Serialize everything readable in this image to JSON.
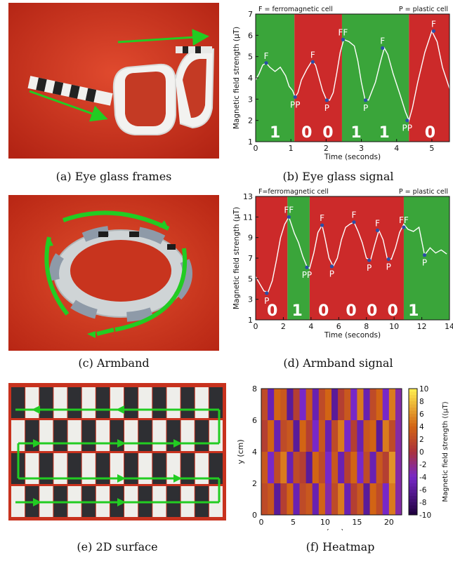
{
  "captions": {
    "a": "(a) Eye glass frames",
    "b": "(b) Eye glass signal",
    "c": "(c) Armband",
    "d": "(d) Armband signal",
    "e": "(e) 2D surface",
    "f": "(f) Heatmap"
  },
  "colors": {
    "ferro_region": "#cc2a2a",
    "plastic_region": "#3aa53a",
    "signal": "#ffffff",
    "marker": "#2a4fa8",
    "arrow": "#22cc22",
    "photo_bg": "#c8321e"
  },
  "chart_data": [
    {
      "id": "eyeglass-signal",
      "type": "line",
      "legend_left": "F = ferromagnetic cell",
      "legend_right": "P = plastic cell",
      "xlabel": "Time (seconds)",
      "ylabel": "Magnetic field strength (μT)",
      "xlim": [
        0,
        5.5
      ],
      "ylim": [
        1,
        7
      ],
      "xticks": [
        0,
        1,
        2,
        3,
        4,
        5
      ],
      "yticks": [
        1,
        2,
        3,
        4,
        5,
        6,
        7
      ],
      "regions": [
        {
          "from": 0,
          "to": 1.1,
          "cell": "plastic",
          "bit": "1",
          "bit_x": 0.55
        },
        {
          "from": 1.1,
          "to": 2.45,
          "cell": "ferro",
          "bits": [
            {
              "label": "0",
              "x": 1.45
            },
            {
              "label": "0",
              "x": 2.05
            }
          ]
        },
        {
          "from": 2.45,
          "to": 4.35,
          "cell": "plastic",
          "bits": [
            {
              "label": "1",
              "x": 2.85
            },
            {
              "label": "1",
              "x": 3.65
            }
          ]
        },
        {
          "from": 4.35,
          "to": 5.5,
          "cell": "ferro",
          "bit": "0",
          "bit_x": 4.95
        }
      ],
      "series": [
        {
          "x": [
            0,
            0.1,
            0.2,
            0.3,
            0.4,
            0.55,
            0.7,
            0.85,
            0.95,
            1.05,
            1.12,
            1.2,
            1.3,
            1.45,
            1.6,
            1.7,
            1.8,
            1.9,
            2.0,
            2.1,
            2.2,
            2.3,
            2.4,
            2.5,
            2.65,
            2.8,
            2.9,
            3.0,
            3.1,
            3.2,
            3.4,
            3.55,
            3.65,
            3.75,
            3.9,
            4.1,
            4.25,
            4.35,
            4.45,
            4.6,
            4.8,
            5.0,
            5.15,
            5.3,
            5.5
          ],
          "y": [
            3.9,
            4.2,
            4.6,
            4.7,
            4.5,
            4.3,
            4.5,
            4.1,
            3.6,
            3.4,
            3.1,
            3.3,
            3.9,
            4.4,
            4.8,
            4.6,
            4.0,
            3.4,
            3.0,
            2.95,
            3.3,
            4.2,
            5.2,
            5.8,
            5.7,
            5.5,
            4.8,
            3.8,
            3.0,
            2.95,
            3.8,
            4.8,
            5.4,
            5.1,
            4.2,
            3.2,
            2.4,
            2.0,
            2.6,
            3.8,
            5.2,
            6.2,
            5.7,
            4.5,
            3.5
          ]
        }
      ],
      "labels": [
        {
          "text": "F",
          "x": 0.3,
          "y": 4.7,
          "pos": "above"
        },
        {
          "text": "PP",
          "x": 1.12,
          "y": 3.1,
          "pos": "below"
        },
        {
          "text": "F",
          "x": 1.62,
          "y": 4.75,
          "pos": "above"
        },
        {
          "text": "P",
          "x": 2.02,
          "y": 2.95,
          "pos": "below"
        },
        {
          "text": "FF",
          "x": 2.48,
          "y": 5.8,
          "pos": "above"
        },
        {
          "text": "P",
          "x": 3.12,
          "y": 2.95,
          "pos": "below"
        },
        {
          "text": "F",
          "x": 3.6,
          "y": 5.4,
          "pos": "above"
        },
        {
          "text": "PP",
          "x": 4.3,
          "y": 2.0,
          "pos": "below"
        },
        {
          "text": "F",
          "x": 5.05,
          "y": 6.2,
          "pos": "above"
        }
      ]
    },
    {
      "id": "armband-signal",
      "type": "line",
      "legend_left": "F=ferromagnetic cell",
      "legend_right": "P = plastic cell",
      "xlabel": "Time (seconds)",
      "ylabel": "Magnetic field strength (μT)",
      "xlim": [
        0,
        14
      ],
      "ylim": [
        1,
        13
      ],
      "xticks": [
        0,
        2,
        4,
        6,
        8,
        10,
        12,
        14
      ],
      "yticks": [
        1,
        3,
        5,
        7,
        9,
        11,
        13
      ],
      "regions": [
        {
          "from": 0,
          "to": 2.3,
          "cell": "ferro",
          "bit": "0",
          "bit_x": 1.2
        },
        {
          "from": 2.3,
          "to": 3.9,
          "cell": "plastic",
          "bit": "1",
          "bit_x": 3.0
        },
        {
          "from": 3.9,
          "to": 10.7,
          "cell": "ferro",
          "bits": [
            {
              "label": "0",
              "x": 4.9
            },
            {
              "label": "0",
              "x": 6.9
            },
            {
              "label": "0",
              "x": 8.4
            },
            {
              "label": "0",
              "x": 9.9
            }
          ]
        },
        {
          "from": 10.7,
          "to": 14,
          "cell": "plastic",
          "bit": "1",
          "bit_x": 11.4
        }
      ],
      "series": [
        {
          "x": [
            0,
            0.3,
            0.6,
            0.9,
            1.2,
            1.5,
            1.8,
            2.1,
            2.4,
            2.6,
            2.8,
            3.1,
            3.4,
            3.7,
            3.9,
            4.2,
            4.5,
            4.8,
            5.0,
            5.3,
            5.6,
            5.9,
            6.2,
            6.5,
            6.8,
            7.1,
            7.4,
            7.7,
            8.0,
            8.3,
            8.6,
            8.9,
            9.2,
            9.5,
            9.8,
            10.1,
            10.4,
            10.7,
            11.0,
            11.4,
            11.8,
            12.2,
            12.6,
            13.0,
            13.4,
            13.8
          ],
          "y": [
            5.2,
            4.5,
            3.8,
            3.7,
            4.8,
            6.8,
            9.0,
            10.3,
            11.0,
            10.2,
            9.4,
            8.5,
            7.2,
            6.2,
            6.0,
            7.5,
            9.5,
            10.2,
            9.0,
            7.0,
            6.2,
            7.0,
            8.8,
            10.0,
            10.3,
            10.5,
            9.6,
            8.5,
            7.0,
            6.8,
            8.3,
            9.7,
            8.8,
            7.0,
            6.9,
            8.0,
            9.5,
            10.3,
            9.8,
            9.6,
            10.0,
            7.3,
            8.0,
            7.5,
            7.8,
            7.4
          ]
        }
      ],
      "labels": [
        {
          "text": "P",
          "x": 0.8,
          "y": 3.6,
          "pos": "below"
        },
        {
          "text": "FF",
          "x": 2.4,
          "y": 11.0,
          "pos": "above"
        },
        {
          "text": "PP",
          "x": 3.7,
          "y": 6.1,
          "pos": "below"
        },
        {
          "text": "F",
          "x": 4.8,
          "y": 10.2,
          "pos": "above"
        },
        {
          "text": "P",
          "x": 5.5,
          "y": 6.2,
          "pos": "below"
        },
        {
          "text": "F",
          "x": 7.1,
          "y": 10.5,
          "pos": "above"
        },
        {
          "text": "P",
          "x": 8.2,
          "y": 6.8,
          "pos": "below"
        },
        {
          "text": "F",
          "x": 8.8,
          "y": 9.7,
          "pos": "above"
        },
        {
          "text": "P",
          "x": 9.6,
          "y": 6.9,
          "pos": "below"
        },
        {
          "text": "FF",
          "x": 10.7,
          "y": 10.0,
          "pos": "above"
        },
        {
          "text": "P",
          "x": 12.2,
          "y": 7.3,
          "pos": "below"
        }
      ]
    },
    {
      "id": "heatmap",
      "type": "heatmap",
      "xlabel": "x (cm)",
      "ylabel": "y (cm)",
      "colorbar_label": "Magnetic field strength ((μT)",
      "xlim": [
        0,
        22
      ],
      "ylim": [
        0,
        8
      ],
      "xticks": [
        0,
        5,
        10,
        15,
        20
      ],
      "yticks": [
        0,
        2,
        4,
        6,
        8
      ],
      "clim": [
        -10,
        10
      ],
      "cticks": [
        10,
        8,
        6,
        4,
        2,
        0,
        -2,
        -4,
        -6,
        -8,
        -10
      ],
      "rows": 4,
      "cols": 22,
      "values": [
        [
          2,
          -5,
          4,
          3,
          -6,
          1,
          -4,
          3,
          -5,
          2,
          4,
          -6,
          1,
          3,
          -4,
          5,
          -5,
          2,
          4,
          -4,
          5,
          -3
        ],
        [
          1,
          4,
          -5,
          2,
          3,
          -6,
          4,
          1,
          -4,
          3,
          -5,
          2,
          5,
          -4,
          1,
          -5,
          3,
          4,
          -6,
          5,
          2,
          -3
        ],
        [
          3,
          -4,
          2,
          5,
          -5,
          2,
          1,
          -6,
          4,
          2,
          -4,
          3,
          -5,
          1,
          4,
          -4,
          2,
          -5,
          3,
          1,
          6,
          -3
        ],
        [
          2,
          3,
          -6,
          1,
          4,
          -5,
          2,
          3,
          -5,
          4,
          -3,
          2,
          5,
          -5,
          1,
          3,
          -6,
          4,
          2,
          -4,
          5,
          -3
        ]
      ]
    }
  ]
}
